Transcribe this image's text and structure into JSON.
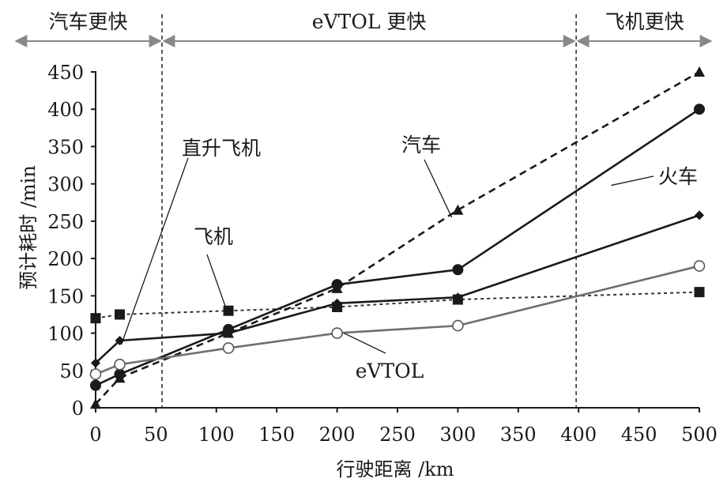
{
  "chart_data": {
    "type": "line",
    "xlabel": "行驶距离 /km",
    "ylabel": "预计耗时 /min",
    "xlim": [
      0,
      500
    ],
    "ylim": [
      0,
      450
    ],
    "xticks": [
      0,
      50,
      100,
      150,
      200,
      250,
      300,
      350,
      400,
      450,
      500
    ],
    "yticks": [
      0,
      50,
      100,
      150,
      200,
      250,
      300,
      350,
      400,
      450
    ],
    "grid": false,
    "regions": [
      {
        "label": "汽车更快",
        "from": 0,
        "to": 55
      },
      {
        "label": "eVTOL 更快",
        "from": 55,
        "to": 398
      },
      {
        "label": "飞机更快",
        "from": 398,
        "to": 500
      }
    ],
    "series": [
      {
        "name": "汽车",
        "marker": "triangle",
        "style": "dashed",
        "color": "#1a1a1a",
        "points": [
          [
            0,
            5
          ],
          [
            20,
            40
          ],
          [
            110,
            100
          ],
          [
            200,
            160
          ],
          [
            300,
            265
          ],
          [
            500,
            450
          ]
        ]
      },
      {
        "name": "火车",
        "marker": "circle-filled",
        "style": "solid",
        "color": "#1a1a1a",
        "points": [
          [
            0,
            30
          ],
          [
            20,
            45
          ],
          [
            110,
            105
          ],
          [
            200,
            165
          ],
          [
            300,
            185
          ],
          [
            500,
            400
          ]
        ]
      },
      {
        "name": "直升飞机",
        "marker": "diamond",
        "style": "solid",
        "color": "#1a1a1a",
        "points": [
          [
            0,
            60
          ],
          [
            20,
            90
          ],
          [
            110,
            100
          ],
          [
            200,
            140
          ],
          [
            300,
            148
          ],
          [
            500,
            258
          ]
        ]
      },
      {
        "name": "飞机",
        "marker": "square",
        "style": "dotted",
        "color": "#333333",
        "points": [
          [
            0,
            120
          ],
          [
            20,
            125
          ],
          [
            110,
            130
          ],
          [
            200,
            135
          ],
          [
            300,
            145
          ],
          [
            500,
            155
          ]
        ]
      },
      {
        "name": "eVTOL",
        "marker": "circle-open",
        "style": "solid",
        "color": "#6f6f6f",
        "points": [
          [
            0,
            45
          ],
          [
            20,
            58
          ],
          [
            110,
            80
          ],
          [
            200,
            100
          ],
          [
            300,
            110
          ],
          [
            500,
            190
          ]
        ]
      }
    ],
    "annotations": [
      {
        "text": "直升飞机",
        "series": "直升飞机"
      },
      {
        "text": "飞机",
        "series": "飞机"
      },
      {
        "text": "汽车",
        "series": "汽车"
      },
      {
        "text": "火车",
        "series": "火车"
      },
      {
        "text": "eVTOL",
        "series": "eVTOL"
      }
    ]
  }
}
